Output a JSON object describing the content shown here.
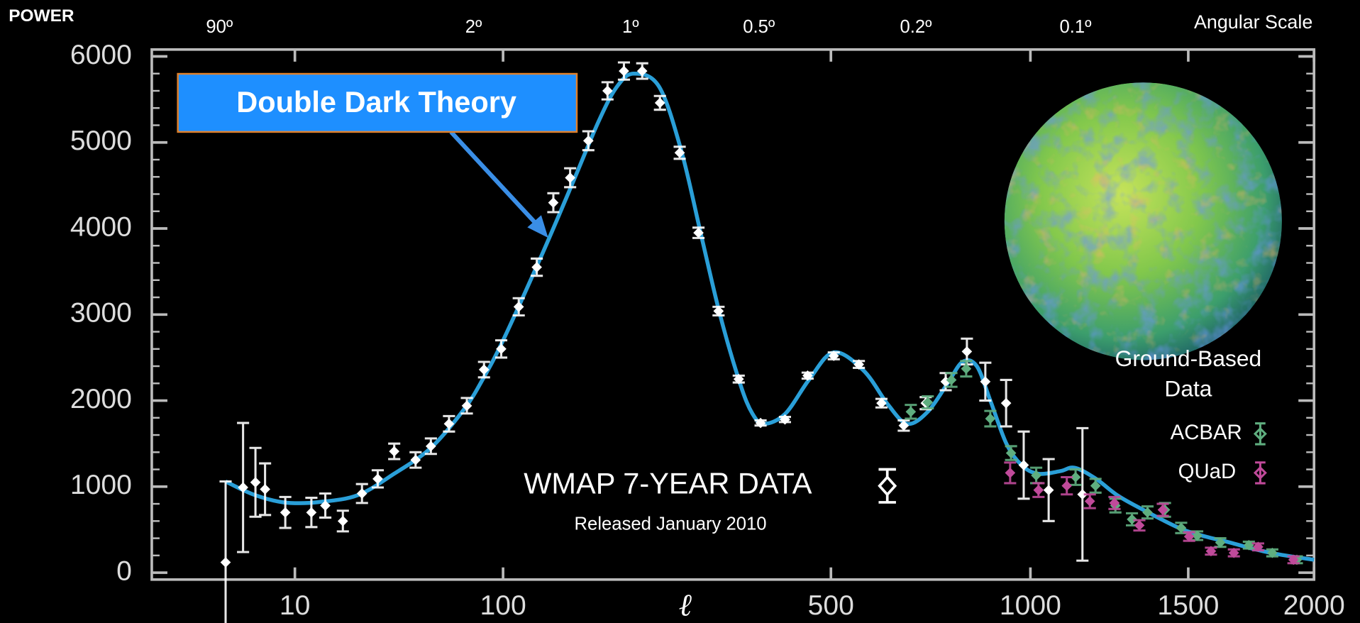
{
  "chart_data": {
    "type": "scatter",
    "ylabel": "POWER",
    "xlabel": "ℓ",
    "top_axis": {
      "title": "Angular Scale",
      "labels": [
        "90º",
        "2º",
        "1º",
        "0.5º",
        "0.2º",
        "0.1º"
      ]
    },
    "xlim": [
      0.36,
      2000
    ],
    "xticks": [
      10,
      100,
      500,
      1000,
      1500,
      2000
    ],
    "ylim": [
      -80,
      6080
    ],
    "yticks": [
      0,
      1000,
      2000,
      3000,
      4000,
      5000,
      6000
    ],
    "legend_title": [
      "Ground-Based",
      "Data"
    ],
    "subtitle": "Released January 2010",
    "series": [
      {
        "name": "WMAP 7-YEAR DATA",
        "color": "#ffffff",
        "x": [
          2,
          3,
          4,
          5,
          8,
          12,
          14,
          17,
          21,
          25,
          30,
          38,
          45,
          55,
          67,
          81,
          98,
          108,
          118,
          128,
          139,
          152,
          167,
          181,
          198,
          216,
          238,
          261,
          288,
          318,
          354,
          399,
          446,
          505,
          551,
          596,
          644,
          695,
          745,
          802,
          855,
          919,
          977,
          1048,
          1143
        ],
        "values": [
          120,
          990,
          1050,
          970,
          700,
          700,
          780,
          600,
          920,
          1090,
          1410,
          1310,
          1470,
          1730,
          1940,
          2360,
          2600,
          3090,
          3550,
          4300,
          4590,
          5020,
          5600,
          5830,
          5830,
          5460,
          4880,
          3950,
          3040,
          2250,
          1740,
          1780,
          2290,
          2520,
          2420,
          1970,
          1710,
          1970,
          2220,
          2570,
          2220,
          1970,
          1250,
          960,
          910
        ],
        "errors": [
          940,
          750,
          400,
          300,
          180,
          170,
          140,
          120,
          110,
          100,
          90,
          90,
          90,
          90,
          90,
          90,
          100,
          100,
          100,
          110,
          110,
          110,
          100,
          100,
          90,
          80,
          70,
          60,
          50,
          40,
          30,
          30,
          35,
          40,
          40,
          50,
          60,
          70,
          100,
          150,
          220,
          270,
          390,
          360,
          770
        ]
      },
      {
        "name": "ACBAR",
        "color": "#5fae7f",
        "x": [
          660,
          700,
          760,
          800,
          870,
          935,
          1015,
          1123,
          1182,
          1244,
          1298,
          1351,
          1413,
          1473,
          1531,
          1614,
          1723,
          1818,
          1923
        ],
        "values": [
          1870,
          1980,
          2240,
          2370,
          1790,
          1390,
          1130,
          1110,
          1010,
          780,
          620,
          700,
          730,
          520,
          430,
          350,
          320,
          230,
          150
        ],
        "errors": [
          80,
          70,
          80,
          90,
          90,
          80,
          90,
          90,
          80,
          80,
          70,
          70,
          80,
          60,
          50,
          50,
          40,
          40,
          40
        ]
      },
      {
        "name": "QUaD",
        "color": "#c04a9a",
        "x": [
          932,
          1021,
          1098,
          1165,
          1241,
          1323,
          1405,
          1503,
          1580,
          1665,
          1760,
          1908
        ],
        "values": [
          1160,
          960,
          1010,
          830,
          810,
          550,
          730,
          420,
          250,
          230,
          300,
          150
        ],
        "errors": [
          120,
          80,
          100,
          80,
          70,
          60,
          70,
          50,
          40,
          40,
          40,
          40
        ]
      },
      {
        "name": "Double Dark Theory",
        "type": "line",
        "color": "#2a9fd8",
        "x": [
          2,
          3,
          4,
          6,
          9,
          13,
          20,
          30,
          45,
          65,
          80,
          100,
          120,
          140,
          160,
          175,
          190,
          215,
          240,
          265,
          290,
          320,
          340,
          360,
          400,
          450,
          505,
          560,
          610,
          652,
          700,
          750,
          790,
          830,
          870,
          920,
          970,
          1020,
          1080,
          1120,
          1180,
          1250,
          1320,
          1400,
          1480,
          1560,
          1650,
          1750,
          1850,
          2000
        ],
        "values": [
          1060,
          960,
          900,
          840,
          810,
          820,
          900,
          1150,
          1450,
          1900,
          2250,
          2700,
          3650,
          4500,
          5250,
          5650,
          5800,
          5650,
          4900,
          3900,
          3000,
          2200,
          1850,
          1730,
          1850,
          2250,
          2560,
          2350,
          1950,
          1730,
          1870,
          2200,
          2450,
          2400,
          2000,
          1500,
          1250,
          1150,
          1180,
          1220,
          1100,
          900,
          760,
          620,
          500,
          420,
          350,
          270,
          210,
          150
        ]
      }
    ]
  }
}
